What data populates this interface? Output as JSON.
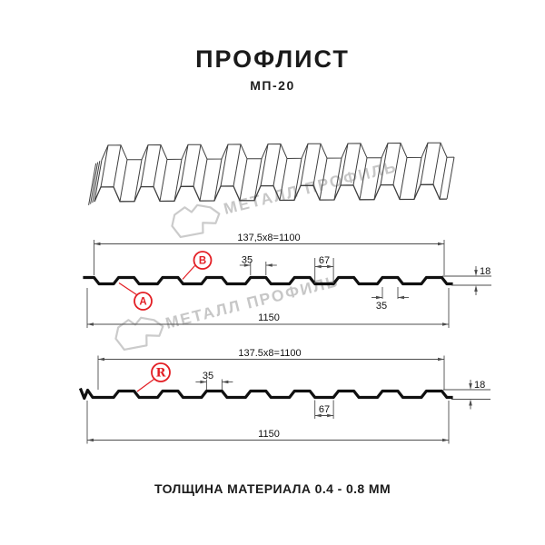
{
  "header": {
    "title": "ПРОФЛИСТ",
    "subtitle": "МП-20"
  },
  "watermark": {
    "brand": "МЕТАЛЛ ПРОФИЛЬ"
  },
  "profile_a": {
    "pitch_label": "137,5x8=1100",
    "crest_width": "35",
    "valley_width": "67",
    "height": "18",
    "crest_width_bottom": "35",
    "total_width": "1150",
    "marker_a": "A",
    "marker_b": "B"
  },
  "profile_r": {
    "pitch_label": "137.5x8=1100",
    "crest_width": "35",
    "valley_width": "67",
    "height": "18",
    "total_width": "1150",
    "marker": "R"
  },
  "footer": {
    "caption": "ТОЛЩИНА МАТЕРИАЛА 0.4 - 0.8 ММ"
  },
  "colors": {
    "accent_red": "#e31e24",
    "line_black": "#101010",
    "dim_gray": "#4d4d4d",
    "watermark_gray": "#c7c7c7"
  }
}
